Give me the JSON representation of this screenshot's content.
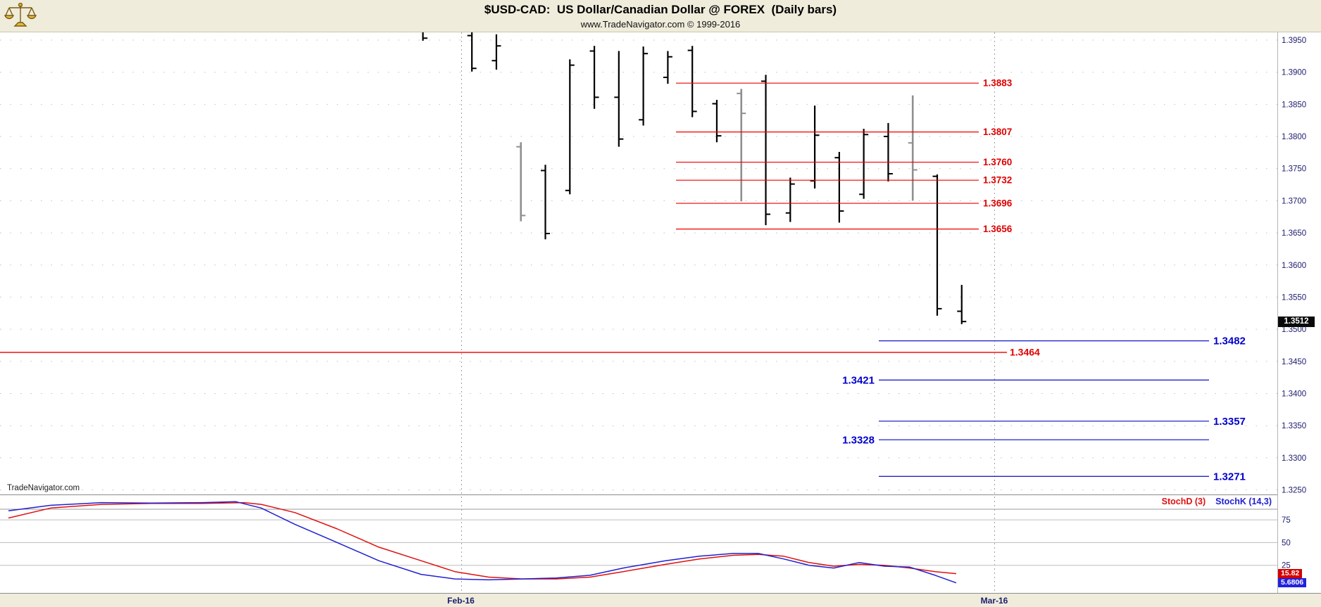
{
  "header": {
    "title": "$USD-CAD:  US Dollar/Canadian Dollar @ FOREX  (Daily bars)",
    "subtitle": "www.TradeNavigator.com © 1999-2016"
  },
  "watermark": "TradeNavigator.com",
  "axis": {
    "price_ticks": [
      "1.3950",
      "1.3900",
      "1.3850",
      "1.3800",
      "1.3750",
      "1.3700",
      "1.3650",
      "1.3600",
      "1.3550",
      "1.3500",
      "1.3450",
      "1.3400",
      "1.3350",
      "1.3300",
      "1.3250"
    ],
    "last_price": "1.3512",
    "stoch_ticks": [
      "75",
      "50",
      "25"
    ],
    "dates": [
      "Feb-16",
      "Mar-16"
    ]
  },
  "indicator": {
    "legend": [
      {
        "label": "StochD (3)",
        "color": "#e01010"
      },
      {
        "label": "StochK (14,3)",
        "color": "#2020d0"
      }
    ],
    "badges": [
      {
        "value": "15.82",
        "bg": "#d40000"
      },
      {
        "value": "5.6806",
        "bg": "#2222dd"
      }
    ]
  },
  "colors": {
    "resistance": "#f00000",
    "resistance_label": "#e00000",
    "pivot": "#f01010",
    "pivot_label": "#e00000",
    "support": "#2222cc",
    "support_label": "#0000cc",
    "bar_black": "#000000",
    "bar_gray": "#8f8f8f",
    "stoch_d": "#e01010",
    "stoch_k": "#2020d0",
    "last_price_bg": "#0a0a0a",
    "axis_text": "#1c1c6e",
    "grid_dot": "#c0c0c0",
    "stoch_grid": "#bdbdbd",
    "separator": "#8c8c8c"
  },
  "chart_data": {
    "type": "bar",
    "subtype": "ohlc-daily-bars",
    "title": "$USD-CAD: US Dollar/Canadian Dollar @ FOREX (Daily bars)",
    "price_axis": {
      "min": 1.325,
      "max": 1.395,
      "tick_step": 0.005
    },
    "x_axis": {
      "labels": [
        "Feb-16",
        "Mar-16"
      ],
      "label_slots": [
        1.55,
        23.33
      ]
    },
    "grid": "dotted",
    "last_price": 1.3512,
    "bars": [
      {
        "slot": 0,
        "o": 1.3969,
        "h": 1.398,
        "l": 1.3949,
        "c": 1.3953,
        "shade": "black"
      },
      {
        "slot": 2,
        "o": 1.3957,
        "h": 1.3966,
        "l": 1.3901,
        "c": 1.3906,
        "shade": "black"
      },
      {
        "slot": 3,
        "o": 1.3918,
        "h": 1.3959,
        "l": 1.3904,
        "c": 1.3941,
        "shade": "black"
      },
      {
        "slot": 4,
        "o": 1.3784,
        "h": 1.3791,
        "l": 1.3668,
        "c": 1.3677,
        "shade": "gray"
      },
      {
        "slot": 5,
        "o": 1.3747,
        "h": 1.3756,
        "l": 1.364,
        "c": 1.3649,
        "shade": "black"
      },
      {
        "slot": 6,
        "o": 1.3716,
        "h": 1.392,
        "l": 1.371,
        "c": 1.3911,
        "shade": "black"
      },
      {
        "slot": 7,
        "o": 1.3933,
        "h": 1.3941,
        "l": 1.3843,
        "c": 1.3861,
        "shade": "black"
      },
      {
        "slot": 8,
        "o": 1.3861,
        "h": 1.3933,
        "l": 1.3784,
        "c": 1.3796,
        "shade": "black"
      },
      {
        "slot": 9,
        "o": 1.3826,
        "h": 1.394,
        "l": 1.3817,
        "c": 1.3929,
        "shade": "black"
      },
      {
        "slot": 10,
        "o": 1.3892,
        "h": 1.3933,
        "l": 1.3882,
        "c": 1.3924,
        "shade": "black"
      },
      {
        "slot": 11,
        "o": 1.3934,
        "h": 1.3941,
        "l": 1.383,
        "c": 1.3839,
        "shade": "black"
      },
      {
        "slot": 12,
        "o": 1.3851,
        "h": 1.3857,
        "l": 1.3791,
        "c": 1.3801,
        "shade": "black"
      },
      {
        "slot": 13,
        "o": 1.3867,
        "h": 1.3874,
        "l": 1.3699,
        "c": 1.3836,
        "shade": "gray"
      },
      {
        "slot": 14,
        "o": 1.3886,
        "h": 1.3896,
        "l": 1.3662,
        "c": 1.3679,
        "shade": "black"
      },
      {
        "slot": 15,
        "o": 1.3681,
        "h": 1.3736,
        "l": 1.3667,
        "c": 1.3726,
        "shade": "black"
      },
      {
        "slot": 16,
        "o": 1.3731,
        "h": 1.3848,
        "l": 1.3719,
        "c": 1.3802,
        "shade": "black"
      },
      {
        "slot": 17,
        "o": 1.3767,
        "h": 1.3776,
        "l": 1.3666,
        "c": 1.3684,
        "shade": "black"
      },
      {
        "slot": 18,
        "o": 1.371,
        "h": 1.3812,
        "l": 1.3703,
        "c": 1.3803,
        "shade": "black"
      },
      {
        "slot": 19,
        "o": 1.38,
        "h": 1.3821,
        "l": 1.373,
        "c": 1.3742,
        "shade": "black"
      },
      {
        "slot": 20,
        "o": 1.379,
        "h": 1.3864,
        "l": 1.37,
        "c": 1.3748,
        "shade": "gray"
      },
      {
        "slot": 21,
        "o": 1.3738,
        "h": 1.3741,
        "l": 1.3521,
        "c": 1.3532,
        "shade": "black"
      },
      {
        "slot": 22,
        "o": 1.3528,
        "h": 1.3569,
        "l": 1.3508,
        "c": 1.3512,
        "shade": "black"
      }
    ],
    "resistance_levels": [
      {
        "value": 1.3883,
        "label": "1.3883"
      },
      {
        "value": 1.3807,
        "label": "1.3807"
      },
      {
        "value": 1.376,
        "label": "1.3760"
      },
      {
        "value": 1.3732,
        "label": "1.3732"
      },
      {
        "value": 1.3696,
        "label": "1.3696"
      },
      {
        "value": 1.3656,
        "label": "1.3656"
      }
    ],
    "pivot_level": {
      "value": 1.3464,
      "label": "1.3464"
    },
    "support_levels": [
      {
        "value": 1.3482,
        "label": "1.3482",
        "label_side": "right"
      },
      {
        "value": 1.3421,
        "label": "1.3421",
        "label_side": "left"
      },
      {
        "value": 1.3357,
        "label": "1.3357",
        "label_side": "right"
      },
      {
        "value": 1.3328,
        "label": "1.3328",
        "label_side": "left"
      },
      {
        "value": 1.3271,
        "label": "1.3271",
        "label_side": "right"
      }
    ],
    "stochastic": {
      "legend": [
        "StochD (3)",
        "StochK (14,3)"
      ],
      "axis": {
        "min": 0,
        "max": 100,
        "gridlines": [
          75,
          50,
          25
        ]
      },
      "d_last": 15.82,
      "k_last": 5.6806,
      "d": [
        [
          12,
          77
        ],
        [
          72,
          88
        ],
        [
          144,
          92
        ],
        [
          215,
          93
        ],
        [
          287,
          93
        ],
        [
          347,
          94
        ],
        [
          371,
          92
        ],
        [
          419,
          83
        ],
        [
          479,
          65
        ],
        [
          538,
          45
        ],
        [
          598,
          30
        ],
        [
          646,
          18
        ],
        [
          694,
          12
        ],
        [
          742,
          10
        ],
        [
          790,
          10
        ],
        [
          838,
          12
        ],
        [
          885,
          18
        ],
        [
          945,
          26
        ],
        [
          993,
          32
        ],
        [
          1041,
          36
        ],
        [
          1077,
          37
        ],
        [
          1113,
          35
        ],
        [
          1149,
          28
        ],
        [
          1184,
          24
        ],
        [
          1220,
          26
        ],
        [
          1256,
          25
        ],
        [
          1292,
          22
        ],
        [
          1328,
          18
        ],
        [
          1358,
          15.82
        ]
      ],
      "k": [
        [
          12,
          85
        ],
        [
          72,
          91
        ],
        [
          144,
          94
        ],
        [
          215,
          93.5
        ],
        [
          287,
          94
        ],
        [
          335,
          95
        ],
        [
          371,
          88
        ],
        [
          419,
          70
        ],
        [
          479,
          50
        ],
        [
          538,
          30
        ],
        [
          598,
          15
        ],
        [
          646,
          10
        ],
        [
          694,
          9
        ],
        [
          742,
          10
        ],
        [
          790,
          11
        ],
        [
          838,
          14
        ],
        [
          885,
          22
        ],
        [
          945,
          30
        ],
        [
          993,
          35
        ],
        [
          1041,
          38
        ],
        [
          1077,
          38
        ],
        [
          1113,
          32
        ],
        [
          1149,
          25
        ],
        [
          1184,
          22
        ],
        [
          1220,
          28
        ],
        [
          1256,
          24
        ],
        [
          1292,
          23
        ],
        [
          1328,
          14
        ],
        [
          1358,
          5.68
        ]
      ]
    }
  }
}
